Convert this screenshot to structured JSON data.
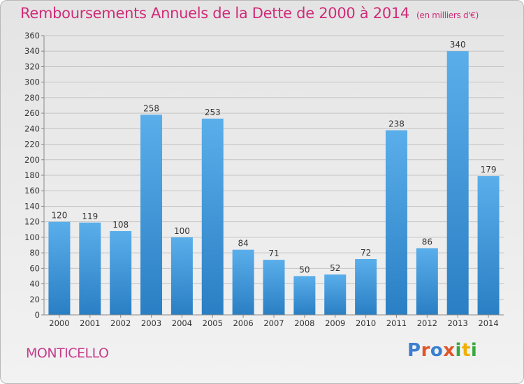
{
  "header": {
    "title": "Remboursements Annuels de la Dette de 2000 à 2014",
    "unit": "(en milliers d'€)"
  },
  "footer": {
    "commune": "MONTICELLO",
    "logo": {
      "text": "Proxiti",
      "letter_colors": [
        "#3a7fd0",
        "#e0552a",
        "#3a7fd0",
        "#e0552a",
        "#39a83c",
        "#f0b000",
        "#39a83c"
      ]
    }
  },
  "colors": {
    "title": "#d02b78",
    "bar_top": "#5aaeea",
    "bar_bottom": "#2a7fc4",
    "grid": "#c4c4c4",
    "label": "#333333"
  },
  "chart_data": {
    "type": "bar",
    "categories": [
      "2000",
      "2001",
      "2002",
      "2003",
      "2004",
      "2005",
      "2006",
      "2007",
      "2008",
      "2009",
      "2010",
      "2011",
      "2012",
      "2013",
      "2014"
    ],
    "values": [
      120,
      119,
      108,
      258,
      100,
      253,
      84,
      71,
      50,
      52,
      72,
      238,
      86,
      340,
      179
    ],
    "yticks": [
      0,
      20,
      40,
      60,
      80,
      100,
      120,
      140,
      160,
      180,
      200,
      220,
      240,
      260,
      280,
      300,
      320,
      340,
      360
    ],
    "ylim": [
      0,
      360
    ],
    "grid": true,
    "data_labels": true
  }
}
